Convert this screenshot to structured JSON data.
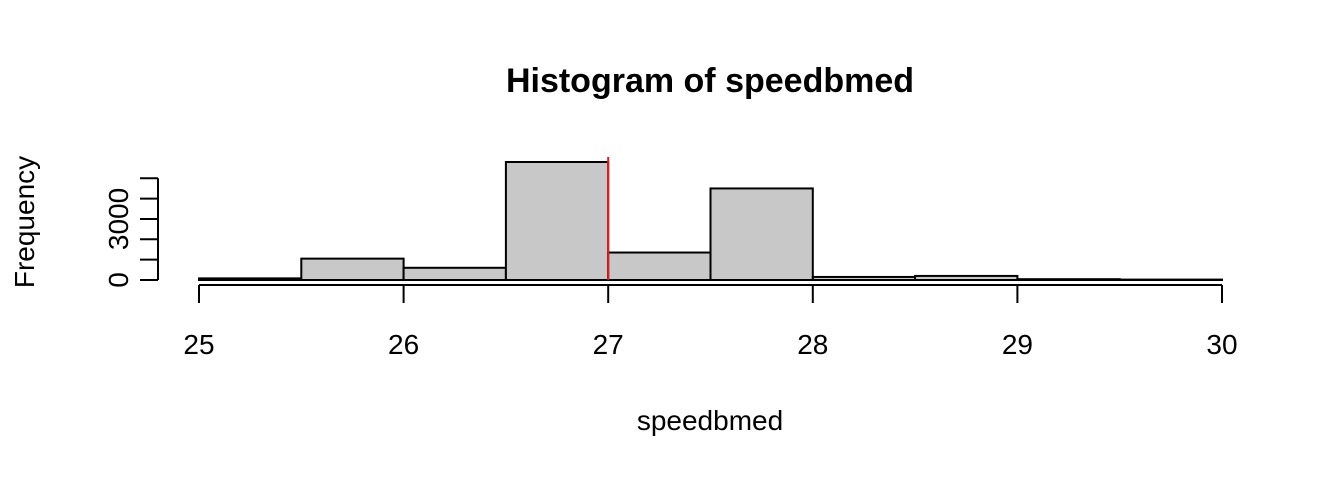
{
  "chart_data": {
    "type": "bar",
    "title": "Histogram of speedbmed",
    "xlabel": "speedbmed",
    "ylabel": "Frequency",
    "bin_edges": [
      25,
      25.5,
      26,
      26.5,
      27,
      27.5,
      28,
      28.5,
      29,
      29.5,
      30
    ],
    "values": [
      80,
      1050,
      600,
      5800,
      1350,
      4500,
      150,
      200,
      40,
      20
    ],
    "xlim": [
      25,
      30
    ],
    "ylim": [
      0,
      5800
    ],
    "x_ticks": [
      "25",
      "26",
      "27",
      "28",
      "29",
      "30"
    ],
    "y_ticks": [
      "0",
      "3000"
    ],
    "y_tick_values": [
      0,
      1000,
      2000,
      3000,
      4000,
      5000
    ],
    "y_tick_labels": {
      "0": "0",
      "3000": "3000"
    },
    "vline": {
      "x": 27,
      "color": "#e41a1c"
    },
    "bar_fill": "#c8c8c8",
    "grid": false
  }
}
